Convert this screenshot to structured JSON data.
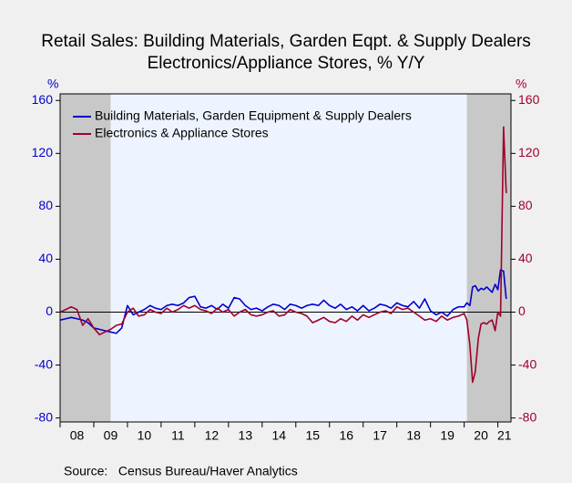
{
  "chart_data": {
    "type": "line",
    "title": "Retail Sales: Building Materials, Garden Eqpt. & Supply Dealers",
    "subtitle": "Electronics/Appliance Stores, % Y/Y",
    "y_label": "%",
    "y2_label": "%",
    "source": "Source:   Census Bureau/Haver Analytics",
    "xlim": [
      2008,
      2021.39
    ],
    "xticks": [
      {
        "value": 2008,
        "label": "08"
      },
      {
        "value": 2009,
        "label": "09"
      },
      {
        "value": 2010,
        "label": "10"
      },
      {
        "value": 2011,
        "label": "11"
      },
      {
        "value": 2012,
        "label": "12"
      },
      {
        "value": 2013,
        "label": "13"
      },
      {
        "value": 2014,
        "label": "14"
      },
      {
        "value": 2015,
        "label": "15"
      },
      {
        "value": 2016,
        "label": "16"
      },
      {
        "value": 2017,
        "label": "17"
      },
      {
        "value": 2018,
        "label": "18"
      },
      {
        "value": 2019,
        "label": "19"
      },
      {
        "value": 2020,
        "label": "20"
      },
      {
        "value": 2021,
        "label": "21"
      }
    ],
    "ylim": [
      -83,
      165
    ],
    "yticks": [
      -80,
      -40,
      0,
      40,
      80,
      120,
      160
    ],
    "y2lim": [
      -83,
      165
    ],
    "y2ticks": [
      -80,
      -40,
      0,
      40,
      80,
      120,
      160
    ],
    "shaded_regions": [
      [
        2007.92,
        2009.5
      ],
      [
        2020.08,
        2021.39
      ]
    ],
    "x": [
      2008.0,
      2008.17,
      2008.33,
      2008.5,
      2008.67,
      2008.83,
      2009.0,
      2009.17,
      2009.33,
      2009.5,
      2009.67,
      2009.83,
      2010.0,
      2010.17,
      2010.33,
      2010.5,
      2010.67,
      2010.83,
      2011.0,
      2011.17,
      2011.33,
      2011.5,
      2011.67,
      2011.83,
      2012.0,
      2012.17,
      2012.33,
      2012.5,
      2012.67,
      2012.83,
      2013.0,
      2013.17,
      2013.33,
      2013.5,
      2013.67,
      2013.83,
      2014.0,
      2014.17,
      2014.33,
      2014.5,
      2014.67,
      2014.83,
      2015.0,
      2015.17,
      2015.33,
      2015.5,
      2015.67,
      2015.83,
      2016.0,
      2016.17,
      2016.33,
      2016.5,
      2016.67,
      2016.83,
      2017.0,
      2017.17,
      2017.33,
      2017.5,
      2017.67,
      2017.83,
      2018.0,
      2018.17,
      2018.33,
      2018.5,
      2018.67,
      2018.83,
      2019.0,
      2019.17,
      2019.33,
      2019.5,
      2019.67,
      2019.83,
      2020.0,
      2020.08,
      2020.17,
      2020.25,
      2020.33,
      2020.42,
      2020.5,
      2020.58,
      2020.67,
      2020.75,
      2020.83,
      2020.92,
      2021.0,
      2021.08,
      2021.17,
      2021.25
    ],
    "series": [
      {
        "name": "Building Materials, Garden Equipment & Supply Dealers",
        "color": "#0000cc",
        "axis": "y",
        "values": [
          -6,
          -5,
          -4,
          -5,
          -6,
          -8,
          -12,
          -13,
          -14,
          -15,
          -16,
          -12,
          5,
          -2,
          0,
          2,
          5,
          3,
          2,
          5,
          6,
          5,
          7,
          11,
          12,
          4,
          3,
          5,
          2,
          6,
          3,
          11,
          10,
          5,
          2,
          3,
          1,
          4,
          6,
          5,
          2,
          6,
          5,
          3,
          5,
          6,
          5,
          9,
          5,
          3,
          6,
          2,
          4,
          1,
          5,
          1,
          3,
          6,
          5,
          3,
          7,
          5,
          4,
          8,
          3,
          10,
          1,
          -2,
          0,
          -3,
          2,
          4,
          4,
          7,
          5,
          19,
          20,
          16,
          18,
          17,
          19,
          17,
          15,
          21,
          17,
          32,
          31,
          10
        ]
      },
      {
        "name": "Electronics & Appliance Stores",
        "color": "#a0002a",
        "axis": "y2",
        "values": [
          0,
          2,
          4,
          2,
          -10,
          -5,
          -12,
          -17,
          -15,
          -13,
          -10,
          -9,
          0,
          3,
          -3,
          -2,
          2,
          0,
          -1,
          3,
          0,
          2,
          5,
          3,
          5,
          2,
          1,
          -1,
          3,
          0,
          2,
          -3,
          0,
          2,
          -2,
          -3,
          -2,
          0,
          1,
          -3,
          -2,
          2,
          0,
          -1,
          -3,
          -8,
          -6,
          -4,
          -7,
          -8,
          -5,
          -7,
          -3,
          -6,
          -2,
          -4,
          -2,
          0,
          1,
          -1,
          4,
          2,
          3,
          0,
          -3,
          -6,
          -5,
          -7,
          -3,
          -6,
          -4,
          -3,
          -1,
          -6,
          -25,
          -53,
          -45,
          -20,
          -9,
          -8,
          -9,
          -7,
          -6,
          -14,
          0,
          -3,
          140,
          90
        ]
      }
    ]
  }
}
